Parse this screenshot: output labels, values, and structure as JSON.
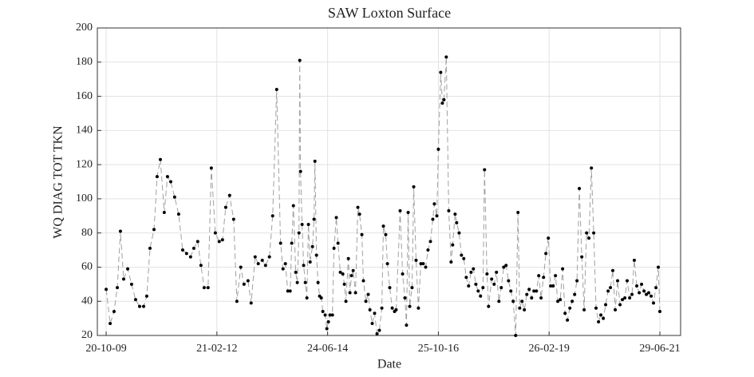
{
  "chart_data": {
    "type": "line",
    "title": "SAW Loxton Surface",
    "x_label": "Date",
    "y_label": "WQ DIAG TOT TKN",
    "x": [
      "2009-10-20",
      "2009-11-20",
      "2009-12-20",
      "2010-01-14",
      "2010-02-07",
      "2010-03-04",
      "2010-04-04",
      "2010-05-04",
      "2010-06-04",
      "2010-07-05",
      "2010-08-05",
      "2010-08-29",
      "2010-09-23",
      "2010-10-24",
      "2010-11-17",
      "2010-12-12",
      "2011-01-11",
      "2011-02-05",
      "2011-03-02",
      "2011-04-01",
      "2011-05-02",
      "2011-06-02",
      "2011-07-02",
      "2011-08-02",
      "2011-08-27",
      "2011-09-26",
      "2011-10-21",
      "2011-11-15",
      "2011-12-15",
      "2012-01-09",
      "2012-02-09",
      "2012-03-10",
      "2012-04-04",
      "2012-04-29",
      "2012-05-29",
      "2012-06-29",
      "2012-07-24",
      "2012-08-23",
      "2012-09-17",
      "2012-10-18",
      "2012-11-11",
      "2012-12-12",
      "2013-01-05",
      "2013-02-05",
      "2013-03-02",
      "2013-04-01",
      "2013-04-26",
      "2013-05-27",
      "2013-06-26",
      "2013-07-15",
      "2013-08-02",
      "2013-08-21",
      "2013-09-08",
      "2013-09-20",
      "2013-10-03",
      "2013-10-21",
      "2013-11-02",
      "2013-11-15",
      "2013-11-21",
      "2013-11-27",
      "2013-12-09",
      "2013-12-21",
      "2014-01-03",
      "2014-01-15",
      "2014-01-27",
      "2014-02-09",
      "2014-02-27",
      "2014-03-11",
      "2014-03-18",
      "2014-03-30",
      "2014-04-11",
      "2014-04-23",
      "2014-05-06",
      "2014-05-18",
      "2014-06-05",
      "2014-06-18",
      "2014-06-30",
      "2014-07-12",
      "2014-07-31",
      "2014-08-12",
      "2014-08-30",
      "2014-09-12",
      "2014-09-30",
      "2014-10-19",
      "2014-10-31",
      "2014-11-12",
      "2014-12-01",
      "2014-12-13",
      "2014-12-25",
      "2015-01-07",
      "2015-01-25",
      "2015-02-12",
      "2015-02-25",
      "2015-03-15",
      "2015-03-27",
      "2015-04-15",
      "2015-05-03",
      "2015-05-16",
      "2015-06-03",
      "2015-06-21",
      "2015-07-10",
      "2015-07-28",
      "2015-08-16",
      "2015-08-28",
      "2015-09-15",
      "2015-09-28",
      "2015-10-16",
      "2015-11-04",
      "2015-11-22",
      "2015-12-04",
      "2016-01-04",
      "2016-01-23",
      "2016-02-10",
      "2016-02-22",
      "2016-03-06",
      "2016-03-18",
      "2016-04-05",
      "2016-04-18",
      "2016-05-06",
      "2016-05-24",
      "2016-06-12",
      "2016-06-30",
      "2016-07-19",
      "2016-08-06",
      "2016-08-25",
      "2016-09-12",
      "2016-09-24",
      "2016-10-13",
      "2016-10-25",
      "2016-11-12",
      "2016-11-25",
      "2016-12-07",
      "2016-12-25",
      "2017-01-13",
      "2017-01-31",
      "2017-02-12",
      "2017-03-03",
      "2017-03-15",
      "2017-04-03",
      "2017-04-21",
      "2017-05-09",
      "2017-05-28",
      "2017-06-15",
      "2017-07-04",
      "2017-07-22",
      "2017-08-10",
      "2017-08-28",
      "2017-09-15",
      "2017-10-04",
      "2017-10-16",
      "2017-11-04",
      "2017-11-16",
      "2017-12-10",
      "2017-12-29",
      "2018-01-16",
      "2018-02-04",
      "2018-02-22",
      "2018-03-13",
      "2018-03-31",
      "2018-04-19",
      "2018-05-07",
      "2018-05-25",
      "2018-06-13",
      "2018-07-01",
      "2018-07-14",
      "2018-08-01",
      "2018-08-19",
      "2018-09-07",
      "2018-09-25",
      "2018-10-14",
      "2018-11-01",
      "2018-11-20",
      "2018-12-08",
      "2018-12-26",
      "2019-01-14",
      "2019-02-01",
      "2019-02-20",
      "2019-03-10",
      "2019-03-29",
      "2019-04-16",
      "2019-05-04",
      "2019-05-23",
      "2019-06-10",
      "2019-06-29",
      "2019-07-17",
      "2019-08-05",
      "2019-08-23",
      "2019-09-11",
      "2019-09-29",
      "2019-10-17",
      "2019-11-05",
      "2019-11-23",
      "2019-12-12",
      "2019-12-30",
      "2020-01-18",
      "2020-02-05",
      "2020-02-23",
      "2020-03-13",
      "2020-03-31",
      "2020-04-19",
      "2020-05-07",
      "2020-05-26",
      "2020-06-13",
      "2020-07-01",
      "2020-07-20",
      "2020-08-07",
      "2020-08-26",
      "2020-09-13",
      "2020-10-02",
      "2020-10-20",
      "2020-11-08",
      "2020-11-26",
      "2020-12-14",
      "2021-01-02",
      "2021-01-21",
      "2021-02-08",
      "2021-02-27",
      "2021-03-17",
      "2021-04-04",
      "2021-04-23",
      "2021-05-11",
      "2021-05-30",
      "2021-06-17",
      "2021-06-29"
    ],
    "values": [
      47,
      27,
      34,
      48,
      81,
      53,
      59,
      50,
      41,
      37,
      37,
      43,
      71,
      82,
      113,
      123,
      92,
      113,
      110,
      101,
      91,
      70,
      68,
      66,
      71,
      75,
      61,
      48,
      48,
      118,
      80,
      75,
      76,
      95,
      102,
      88,
      40,
      60,
      50,
      52,
      39,
      66,
      62,
      64,
      61,
      66,
      90,
      164,
      74,
      59,
      62,
      46,
      46,
      74,
      96,
      57,
      51,
      80,
      181,
      116,
      85,
      61,
      51,
      42,
      85,
      63,
      72,
      88,
      122,
      67,
      51,
      43,
      42,
      34,
      32,
      24,
      28,
      32,
      32,
      71,
      89,
      74,
      57,
      56,
      50,
      40,
      65,
      45,
      55,
      58,
      45,
      95,
      91,
      79,
      52,
      40,
      44,
      35,
      27,
      33,
      21,
      23,
      36,
      84,
      79,
      62,
      48,
      36,
      34,
      35,
      93,
      56,
      42,
      26,
      92,
      37,
      48,
      107,
      64,
      36,
      62,
      62,
      60,
      70,
      75,
      88,
      97,
      90,
      129,
      174,
      156,
      158,
      183,
      93,
      63,
      73,
      91,
      86,
      80,
      67,
      65,
      54,
      49,
      57,
      59,
      50,
      46,
      43,
      48,
      117,
      56,
      37,
      53,
      50,
      57,
      40,
      48,
      60,
      61,
      52,
      46,
      40,
      20,
      92,
      36,
      40,
      35,
      44,
      47,
      42,
      46,
      46,
      55,
      42,
      54,
      68,
      77,
      49,
      49,
      55,
      40,
      41,
      59,
      33,
      29,
      36,
      40,
      44,
      52,
      106,
      66,
      35,
      80,
      77,
      118,
      80,
      36,
      28,
      32,
      30,
      38,
      46,
      48,
      58,
      35,
      52,
      38,
      41,
      42,
      52,
      42,
      44,
      64,
      49,
      45,
      50,
      46,
      44,
      45,
      43,
      39,
      48,
      60,
      34
    ],
    "color": "#a0a0a0",
    "marker_color": "#000000",
    "xlim": [
      "2009-08-13",
      "2021-12-06"
    ],
    "xticks": [
      {
        "value": "2009-10-20",
        "label": "20-10-09"
      },
      {
        "value": "2012-02-21",
        "label": "21-02-12"
      },
      {
        "value": "2014-06-24",
        "label": "24-06-14"
      },
      {
        "value": "2016-10-25",
        "label": "25-10-16"
      },
      {
        "value": "2019-02-26",
        "label": "26-02-19"
      },
      {
        "value": "2021-06-29",
        "label": "29-06-21"
      }
    ],
    "ylim": [
      20,
      200
    ],
    "yticks": [
      20,
      40,
      60,
      80,
      100,
      120,
      140,
      160,
      180,
      200
    ],
    "grid": true
  }
}
